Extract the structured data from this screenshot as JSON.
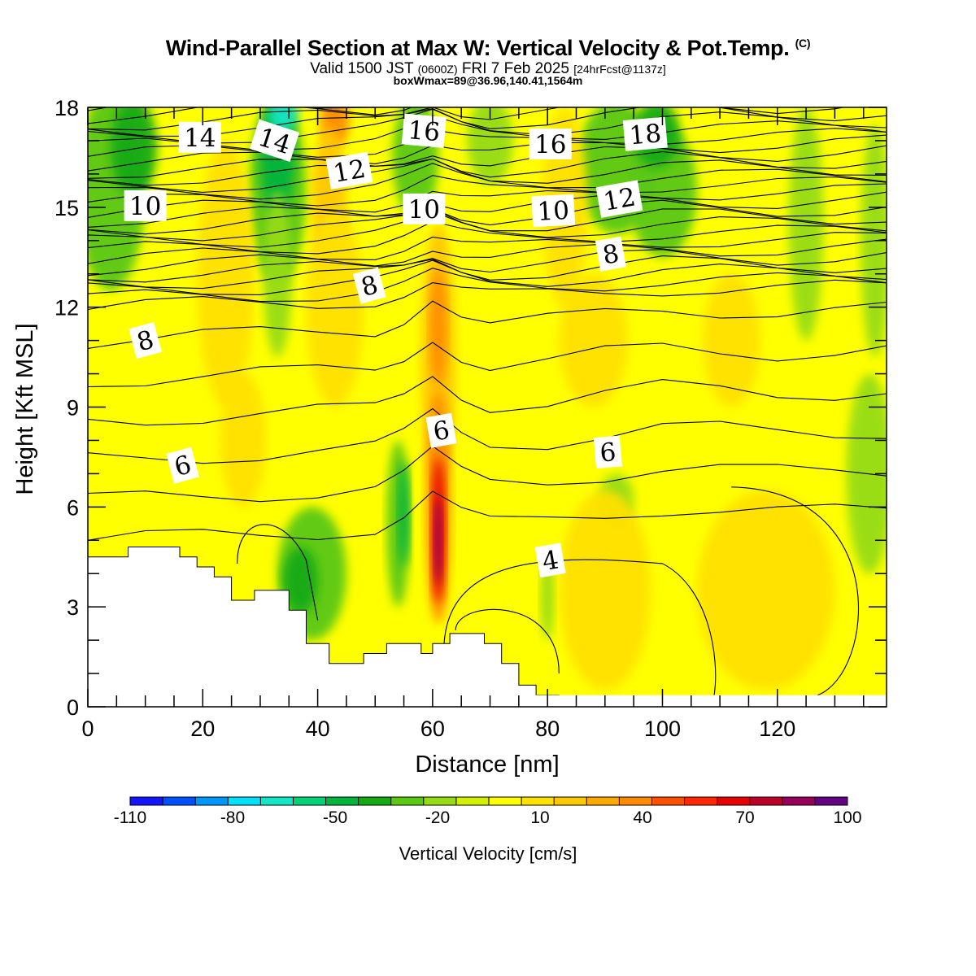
{
  "header": {
    "title": "Wind-Parallel Section at Max W: Vertical Velocity & Pot.Temp.",
    "title_mark": "(C)",
    "subtitle_a": "Valid 1500 JST",
    "subtitle_b": "(0600Z)",
    "subtitle_c": "FRI 7 Feb 2025",
    "subtitle_d": "[24hrFcst@1137z]",
    "subtitle2": "boxWmax=89@36.96,140.41,1564m"
  },
  "chart_data": {
    "type": "heatmap",
    "xlabel": "Distance [nm]",
    "ylabel": "Height [Kft MSL]",
    "xlim": [
      0,
      139
    ],
    "ylim": [
      0,
      18
    ],
    "x_ticks": [
      0,
      20,
      40,
      60,
      80,
      100,
      120
    ],
    "y_ticks": [
      0,
      3,
      6,
      9,
      12,
      15,
      18
    ],
    "colorbar": {
      "title": "Vertical Velocity [cm/s]",
      "tick_labels": [
        "-110",
        "-80",
        "-50",
        "-20",
        "10",
        "40",
        "70",
        "100"
      ],
      "tick_values": [
        -110,
        -80,
        -50,
        -20,
        10,
        40,
        70,
        100
      ],
      "min": -110,
      "max": 100,
      "step": 10,
      "colors": [
        "#1414ff",
        "#0050ff",
        "#0096ff",
        "#00e1ff",
        "#14e6c8",
        "#00d278",
        "#00b43c",
        "#14aa14",
        "#5ac814",
        "#96dc14",
        "#d2f000",
        "#ffff00",
        "#ffe100",
        "#ffc800",
        "#ffaa00",
        "#ff8c00",
        "#ff5000",
        "#ff2800",
        "#e60000",
        "#be0028",
        "#96005a",
        "#640082"
      ]
    },
    "theta_contour_labels": [
      {
        "text": "14",
        "x": 19.5,
        "y": 17.1,
        "rot": 0
      },
      {
        "text": "14",
        "x": 32.5,
        "y": 17.0,
        "rot": 18
      },
      {
        "text": "16",
        "x": 58.5,
        "y": 17.3,
        "rot": 5
      },
      {
        "text": "16",
        "x": 80.5,
        "y": 16.9,
        "rot": 0
      },
      {
        "text": "18",
        "x": 97.0,
        "y": 17.2,
        "rot": -5
      },
      {
        "text": "12",
        "x": 45.5,
        "y": 16.1,
        "rot": -10
      },
      {
        "text": "12",
        "x": 92.5,
        "y": 15.25,
        "rot": -10
      },
      {
        "text": "10",
        "x": 10.0,
        "y": 15.05,
        "rot": 0
      },
      {
        "text": "10",
        "x": 58.5,
        "y": 14.95,
        "rot": 0
      },
      {
        "text": "10",
        "x": 81.0,
        "y": 14.9,
        "rot": -3
      },
      {
        "text": "8",
        "x": 91.0,
        "y": 13.6,
        "rot": -10
      },
      {
        "text": "8",
        "x": 49.0,
        "y": 12.65,
        "rot": -15
      },
      {
        "text": "8",
        "x": 10.0,
        "y": 11.0,
        "rot": -15
      },
      {
        "text": "6",
        "x": 61.5,
        "y": 8.3,
        "rot": -10
      },
      {
        "text": "6",
        "x": 90.5,
        "y": 7.65,
        "rot": -5
      },
      {
        "text": "6",
        "x": 16.5,
        "y": 7.25,
        "rot": -15
      },
      {
        "text": "4",
        "x": 80.5,
        "y": 4.4,
        "rot": -10
      }
    ],
    "terrain": [
      [
        0,
        4.5
      ],
      [
        2,
        4.5
      ],
      [
        7,
        4.5
      ],
      [
        7,
        4.8
      ],
      [
        16,
        4.8
      ],
      [
        16,
        4.5
      ],
      [
        19,
        4.5
      ],
      [
        19,
        4.2
      ],
      [
        22,
        4.2
      ],
      [
        22,
        3.9
      ],
      [
        25,
        3.9
      ],
      [
        25,
        3.2
      ],
      [
        29,
        3.2
      ],
      [
        29,
        3.5
      ],
      [
        35,
        3.5
      ],
      [
        35,
        2.9
      ],
      [
        38,
        2.9
      ],
      [
        38,
        1.9
      ],
      [
        42,
        1.9
      ],
      [
        42,
        1.3
      ],
      [
        48,
        1.3
      ],
      [
        48,
        1.6
      ],
      [
        52,
        1.6
      ],
      [
        52,
        1.9
      ],
      [
        58,
        1.9
      ],
      [
        58,
        1.6
      ],
      [
        60,
        1.6
      ],
      [
        60,
        1.9
      ],
      [
        63,
        1.9
      ],
      [
        63,
        2.2
      ],
      [
        69,
        2.2
      ],
      [
        69,
        1.9
      ],
      [
        72,
        1.9
      ],
      [
        72,
        1.3
      ],
      [
        75,
        1.3
      ],
      [
        75,
        0.65
      ],
      [
        78,
        0.65
      ],
      [
        78,
        0.35
      ],
      [
        82,
        0.35
      ],
      [
        82,
        0.35
      ]
    ]
  }
}
